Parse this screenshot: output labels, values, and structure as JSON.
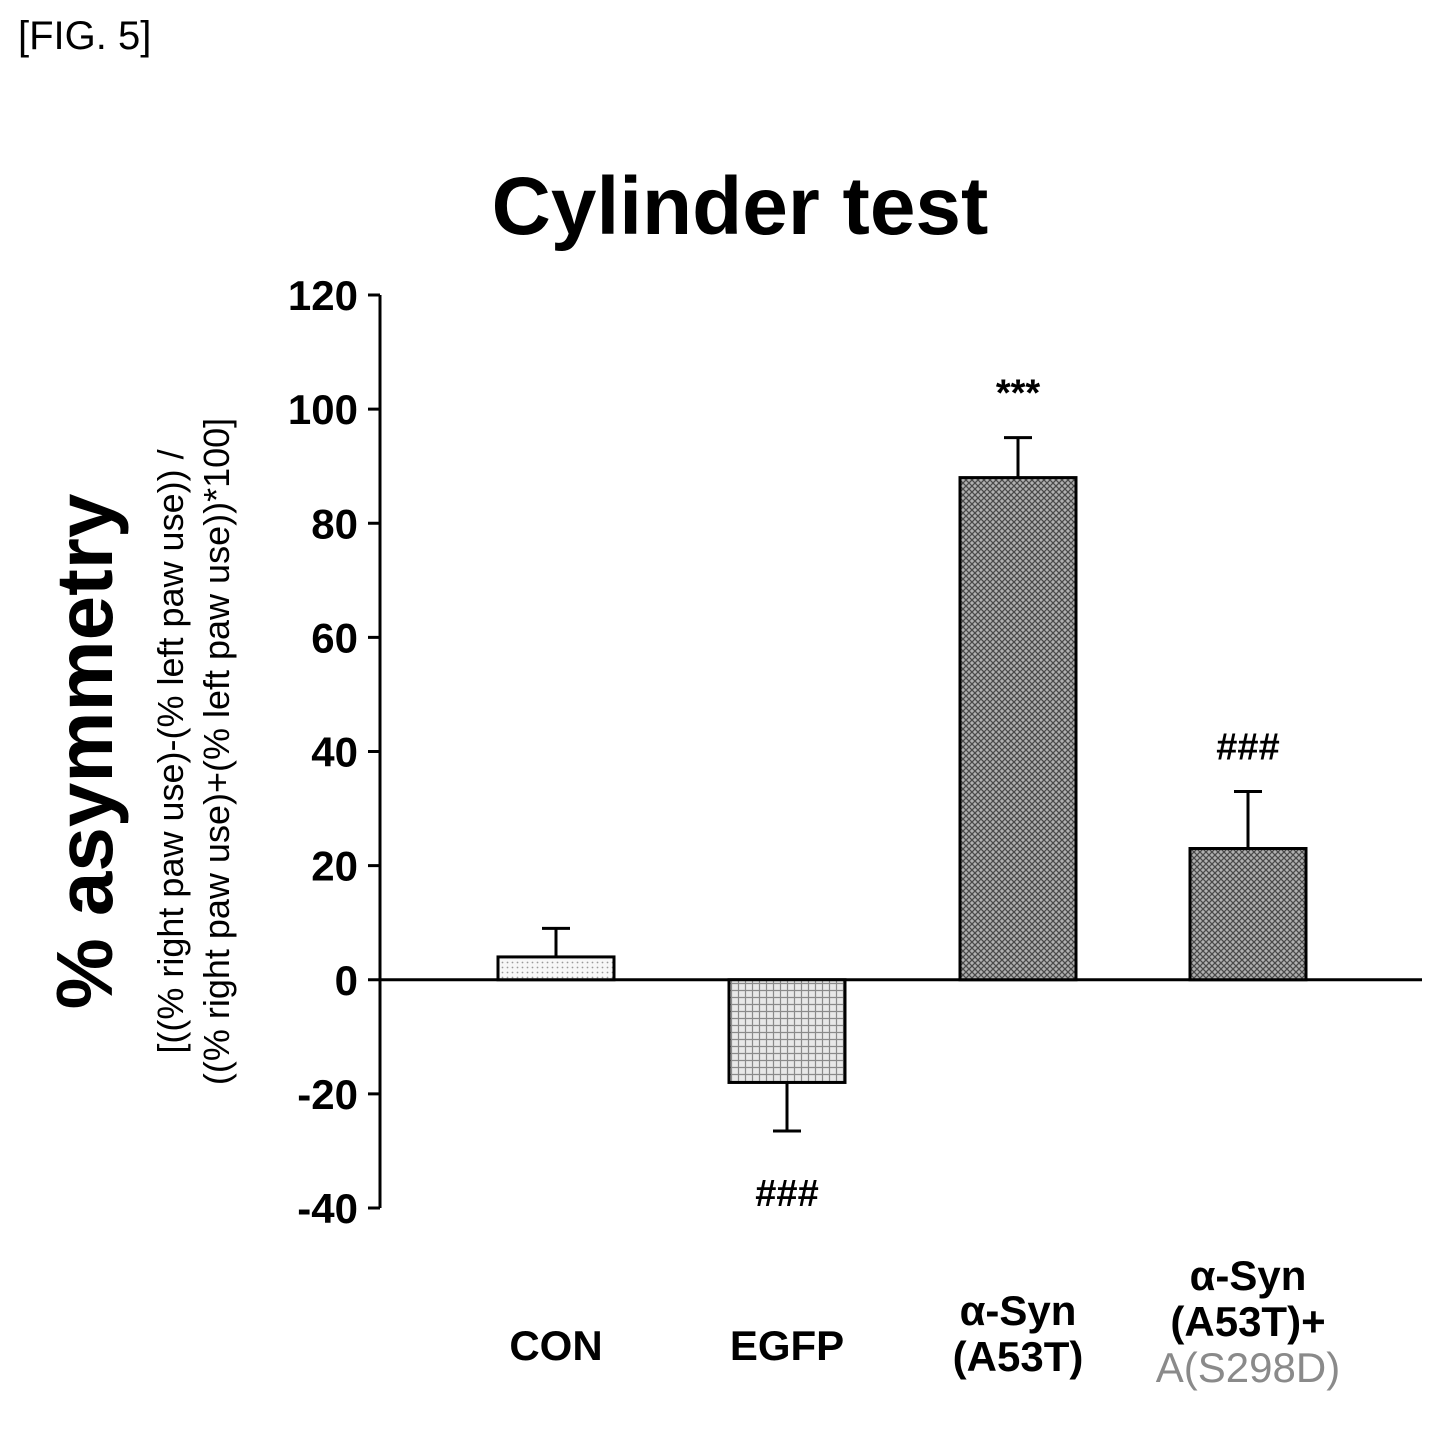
{
  "figure_label": "[FIG. 5]",
  "chart_data": {
    "type": "bar",
    "title": "Cylinder test",
    "ylabel": "% asymmetry",
    "ylabel_sub": [
      "[((% right paw use)-(% left paw use)) /",
      "((% right paw use)+(% left paw use))*100]"
    ],
    "ylim": [
      -40,
      120
    ],
    "yticks": [
      -40,
      -20,
      0,
      20,
      40,
      60,
      80,
      100,
      120
    ],
    "categories": [
      {
        "lines": [
          "CON"
        ]
      },
      {
        "lines": [
          "EGFP"
        ]
      },
      {
        "lines": [
          "α-Syn",
          "(A53T)"
        ]
      },
      {
        "lines": [
          "α-Syn",
          "(A53T)+",
          "A(S298D)"
        ]
      }
    ],
    "values": [
      4,
      -18,
      88,
      23
    ],
    "errors": [
      5,
      8.5,
      7,
      10
    ],
    "annotations": [
      "",
      "###",
      "***",
      "###"
    ],
    "bar_colors": [
      "#f4f4f4",
      "#d6d6d6",
      "#8e8e8e",
      "#8a8a8a"
    ],
    "bar_patterns": [
      "dots-fine",
      "grid-light",
      "cross-dark",
      "cross-dark"
    ],
    "grid": false,
    "legend": "none"
  }
}
